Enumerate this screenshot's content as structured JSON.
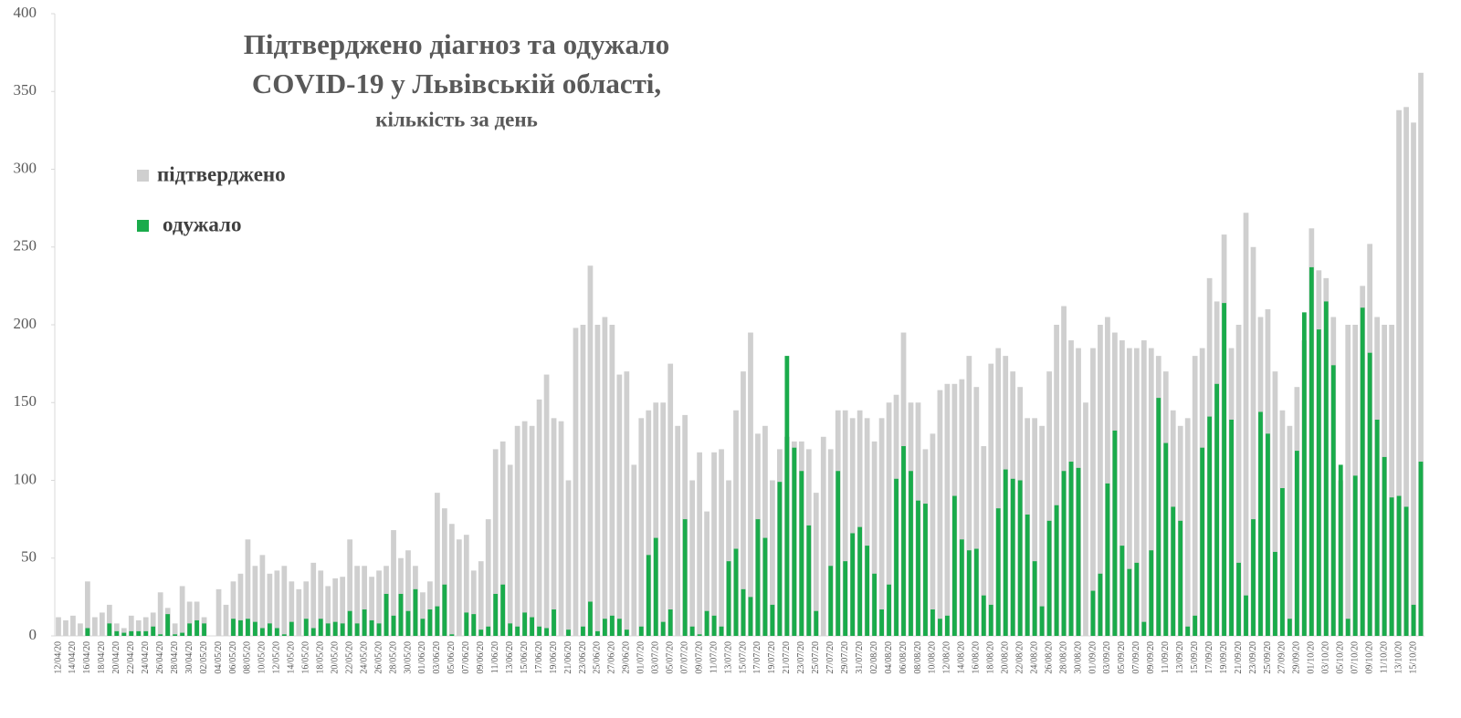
{
  "chart_data": {
    "type": "bar",
    "title": "Підтверджено діагноз та одужало\nCOVID-19 у Львівській області,",
    "subtitle": "кількість за день",
    "categories": [
      "12/04/20",
      null,
      "14/04/20",
      null,
      "16/04/20",
      null,
      "18/04/20",
      null,
      "20/04/20",
      null,
      "22/04/20",
      null,
      "24/04/20",
      null,
      "26/04/20",
      null,
      "28/04/20",
      null,
      "30/04/20",
      null,
      "02/05/20",
      null,
      "04/05/20",
      null,
      "06/05/20",
      null,
      "08/05/20",
      null,
      "10/05/20",
      null,
      "12/05/20",
      null,
      "14/05/20",
      null,
      "16/05/20",
      null,
      "18/05/20",
      null,
      "20/05/20",
      null,
      "22/05/20",
      null,
      "24/05/20",
      null,
      "26/05/20",
      null,
      "28/05/20",
      null,
      "30/05/20",
      null,
      "01/06/20",
      null,
      "03/06/20",
      null,
      "05/06/20",
      null,
      "07/06/20",
      null,
      "09/06/20",
      null,
      "11/06/20",
      null,
      "13/06/20",
      null,
      "15/06/20",
      null,
      "17/06/20",
      null,
      "19/06/20",
      null,
      "21/06/20",
      null,
      "23/06/20",
      null,
      "25/06/20",
      null,
      "27/06/20",
      null,
      "29/06/20",
      null,
      "01/07/20",
      null,
      "03/07/20",
      null,
      "05/07/20",
      null,
      "07/07/20",
      null,
      "09/07/20",
      null,
      "11/07/20",
      null,
      "13/07/20",
      null,
      "15/07/20",
      null,
      "17/07/20",
      null,
      "19/07/20",
      null,
      "21/07/20",
      null,
      "23/07/20",
      null,
      "25/07/20",
      null,
      "27/07/20",
      null,
      "29/07/20",
      null,
      "31/07/20",
      null,
      "02/08/20",
      null,
      "04/08/20",
      null,
      "06/08/20",
      null,
      "08/08/20",
      null,
      "10/08/20",
      null,
      "12/08/20",
      null,
      "14/08/20",
      null,
      "16/08/20",
      null,
      "18/08/20",
      null,
      "20/08/20",
      null,
      "22/08/20",
      null,
      "24/08/20",
      null,
      "26/08/20",
      null,
      "28/08/20",
      null,
      "30/08/20",
      null,
      "01/09/20",
      null,
      "03/09/20",
      null,
      "05/09/20",
      null,
      "07/09/20",
      null,
      "09/09/20",
      null,
      "11/09/20",
      null,
      "13/09/20",
      null,
      "15/09/20",
      null,
      "17/09/20",
      null,
      "19/09/20",
      null,
      "21/09/20",
      null,
      "23/09/20",
      null,
      "25/09/20",
      null,
      "27/09/20",
      null,
      "29/09/20",
      null,
      "01/10/20",
      null,
      "03/10/20",
      null,
      "05/10/20",
      null,
      "07/10/20",
      null,
      "09/10/20",
      null,
      "11/10/20",
      null,
      "13/10/20",
      null,
      "15/10/20",
      null
    ],
    "series": [
      {
        "name": "підтверджено",
        "color": "#cfcfcf",
        "values": [
          12,
          10,
          13,
          8,
          35,
          12,
          15,
          20,
          8,
          5,
          13,
          10,
          12,
          15,
          28,
          18,
          8,
          32,
          22,
          22,
          12,
          0,
          30,
          20,
          35,
          40,
          62,
          45,
          52,
          40,
          42,
          45,
          35,
          30,
          35,
          47,
          42,
          32,
          37,
          38,
          62,
          45,
          45,
          38,
          42,
          45,
          68,
          50,
          55,
          45,
          28,
          35,
          92,
          82,
          72,
          62,
          65,
          42,
          48,
          75,
          120,
          125,
          110,
          135,
          138,
          135,
          152,
          168,
          140,
          138,
          100,
          198,
          200,
          238,
          200,
          205,
          200,
          168,
          170,
          110,
          140,
          145,
          150,
          150,
          175,
          135,
          142,
          100,
          118,
          80,
          118,
          120,
          100,
          145,
          170,
          195,
          130,
          135,
          100,
          120,
          128,
          125,
          125,
          120,
          92,
          128,
          120,
          145,
          145,
          140,
          145,
          140,
          125,
          140,
          150,
          155,
          195,
          150,
          150,
          120,
          130,
          158,
          162,
          162,
          165,
          180,
          160,
          122,
          175,
          185,
          180,
          170,
          160,
          140,
          140,
          135,
          170,
          200,
          212,
          190,
          185,
          150,
          185,
          200,
          205,
          195,
          190,
          185,
          185,
          190,
          185,
          180,
          170,
          145,
          135,
          140,
          180,
          185,
          230,
          215,
          258,
          185,
          200,
          272,
          250,
          205,
          210,
          170,
          145,
          135,
          160,
          190,
          262,
          235,
          230,
          205,
          100,
          200,
          200,
          225,
          252,
          205,
          200,
          200,
          338,
          340,
          330,
          362
        ]
      },
      {
        "name": "одужало",
        "color": "#1aab4b",
        "values": [
          0,
          0,
          0,
          0,
          5,
          0,
          0,
          8,
          3,
          2,
          3,
          3,
          3,
          6,
          1,
          14,
          1,
          2,
          8,
          10,
          8,
          0,
          0,
          0,
          11,
          10,
          11,
          9,
          5,
          8,
          5,
          1,
          9,
          0,
          11,
          5,
          11,
          8,
          9,
          8,
          16,
          8,
          17,
          10,
          8,
          27,
          13,
          27,
          16,
          30,
          11,
          17,
          19,
          33,
          1,
          0,
          15,
          14,
          4,
          6,
          27,
          33,
          8,
          6,
          15,
          12,
          6,
          5,
          17,
          0,
          4,
          0,
          6,
          22,
          3,
          11,
          13,
          11,
          4,
          0,
          6,
          52,
          63,
          9,
          17,
          0,
          75,
          6,
          1,
          16,
          13,
          6,
          48,
          56,
          30,
          25,
          75,
          63,
          20,
          99,
          180,
          121,
          106,
          71,
          16,
          0,
          45,
          106,
          48,
          66,
          70,
          58,
          40,
          17,
          33,
          101,
          122,
          106,
          87,
          85,
          17,
          11,
          13,
          90,
          62,
          55,
          56,
          26,
          20,
          82,
          107,
          101,
          100,
          78,
          48,
          19,
          74,
          84,
          106,
          112,
          108,
          0,
          29,
          40,
          98,
          132,
          58,
          43,
          47,
          9,
          55,
          153,
          124,
          83,
          74,
          6,
          13,
          121,
          141,
          162,
          214,
          139,
          47,
          26,
          75,
          144,
          130,
          54,
          95,
          11,
          119,
          208,
          237,
          197,
          215,
          174,
          110,
          11,
          103,
          211,
          182,
          139,
          115,
          89,
          90,
          83,
          20,
          112
        ]
      }
    ],
    "ylim": [
      0,
      400
    ],
    "yticks": [
      0,
      50,
      100,
      150,
      200,
      250,
      300,
      350,
      400
    ],
    "grid": false
  }
}
